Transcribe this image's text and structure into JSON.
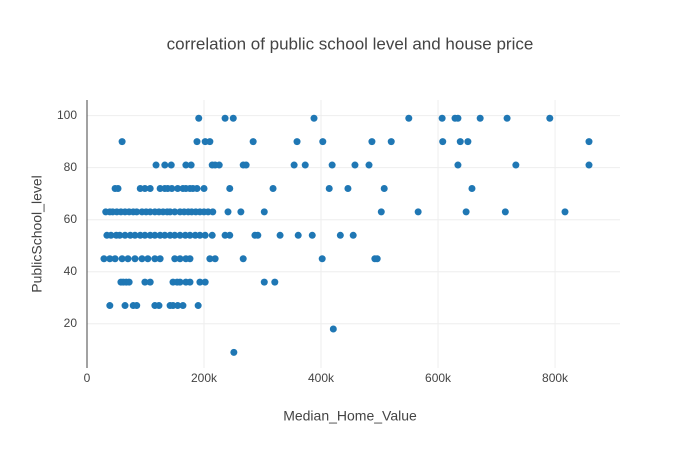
{
  "chart_data": {
    "type": "scatter",
    "title": "correlation of public school level and house price",
    "x_label": "Median_Home_Value",
    "y_label": "PublicSchool_level",
    "color": "#1f77b4",
    "grid": true,
    "xlim": [
      0,
      911000
    ],
    "ylim": [
      3,
      106
    ],
    "xticks": [
      0,
      {
        "value": 200000,
        "label": "200k"
      },
      {
        "value": 400000,
        "label": "400k"
      },
      {
        "value": 600000,
        "label": "600k"
      },
      {
        "value": 800000,
        "label": "800k"
      }
    ],
    "yticks": [
      20,
      40,
      60,
      80,
      100
    ],
    "x": [
      191000,
      236000,
      250000,
      388000,
      550000,
      607000,
      629000,
      634000,
      672000,
      718000,
      791000,
      60000,
      188000,
      202000,
      210000,
      284000,
      359000,
      403000,
      487000,
      520000,
      608000,
      638000,
      651000,
      858000,
      118000,
      133000,
      144000,
      169000,
      178000,
      214000,
      219000,
      226000,
      267000,
      272000,
      354000,
      373000,
      419000,
      458000,
      482000,
      634000,
      733000,
      858000,
      48000,
      53000,
      91000,
      99000,
      108000,
      125000,
      133000,
      138000,
      145000,
      155000,
      164000,
      169000,
      176000,
      181000,
      188000,
      200000,
      244000,
      318000,
      414000,
      446000,
      508000,
      658000,
      32000,
      39000,
      44000,
      51000,
      58000,
      65000,
      72000,
      79000,
      85000,
      94000,
      101000,
      108000,
      116000,
      123000,
      130000,
      137000,
      142000,
      150000,
      159000,
      166000,
      173000,
      179000,
      186000,
      193000,
      200000,
      207000,
      215000,
      241000,
      263000,
      303000,
      503000,
      566000,
      648000,
      715000,
      817000,
      34000,
      41000,
      50000,
      56000,
      65000,
      74000,
      82000,
      91000,
      99000,
      108000,
      116000,
      125000,
      133000,
      142000,
      150000,
      159000,
      168000,
      176000,
      185000,
      193000,
      202000,
      214000,
      236000,
      244000,
      287000,
      292000,
      330000,
      361000,
      385000,
      433000,
      455000,
      29000,
      39000,
      48000,
      60000,
      70000,
      82000,
      94000,
      104000,
      116000,
      125000,
      150000,
      159000,
      169000,
      176000,
      210000,
      219000,
      267000,
      402000,
      492000,
      496000,
      58000,
      62000,
      67000,
      72000,
      99000,
      108000,
      147000,
      154000,
      159000,
      169000,
      176000,
      193000,
      202000,
      303000,
      321000,
      39000,
      65000,
      79000,
      85000,
      116000,
      123000,
      142000,
      147000,
      155000,
      164000,
      190000,
      421000,
      251000
    ],
    "values": [
      99,
      99,
      99,
      99,
      99,
      99,
      99,
      99,
      99,
      99,
      99,
      90,
      90,
      90,
      90,
      90,
      90,
      90,
      90,
      90,
      90,
      90,
      90,
      90,
      81,
      81,
      81,
      81,
      81,
      81,
      81,
      81,
      81,
      81,
      81,
      81,
      81,
      81,
      81,
      81,
      81,
      81,
      72,
      72,
      72,
      72,
      72,
      72,
      72,
      72,
      72,
      72,
      72,
      72,
      72,
      72,
      72,
      72,
      72,
      72,
      72,
      72,
      72,
      72,
      63,
      63,
      63,
      63,
      63,
      63,
      63,
      63,
      63,
      63,
      63,
      63,
      63,
      63,
      63,
      63,
      63,
      63,
      63,
      63,
      63,
      63,
      63,
      63,
      63,
      63,
      63,
      63,
      63,
      63,
      63,
      63,
      63,
      63,
      63,
      54,
      54,
      54,
      54,
      54,
      54,
      54,
      54,
      54,
      54,
      54,
      54,
      54,
      54,
      54,
      54,
      54,
      54,
      54,
      54,
      54,
      54,
      54,
      54,
      54,
      54,
      54,
      54,
      54,
      54,
      54,
      45,
      45,
      45,
      45,
      45,
      45,
      45,
      45,
      45,
      45,
      45,
      45,
      45,
      45,
      45,
      45,
      45,
      45,
      45,
      45,
      36,
      36,
      36,
      36,
      36,
      36,
      36,
      36,
      36,
      36,
      36,
      36,
      36,
      36,
      36,
      27,
      27,
      27,
      27,
      27,
      27,
      27,
      27,
      27,
      27,
      27,
      18,
      9
    ]
  }
}
